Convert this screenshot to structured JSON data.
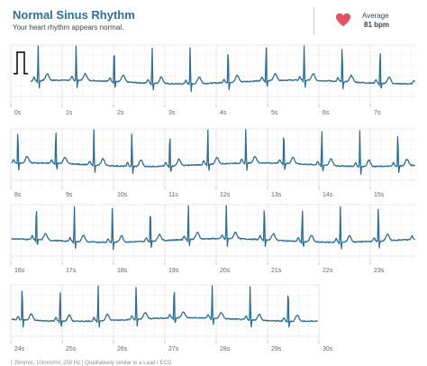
{
  "header": {
    "title": "Normal Sinus Rhythm",
    "subtitle": "Your heart rhythm appears normal.",
    "average_label": "Average",
    "average_value": "81 bpm",
    "heart_icon": "heart-icon"
  },
  "colors": {
    "trace": "#2b6f98",
    "heart": "#e8505f",
    "grid_minor": "#f3e6e6",
    "grid_major": "#e6caca"
  },
  "strips": [
    {
      "time_labels": [
        "0s",
        "1s",
        "2s",
        "3s",
        "4s",
        "5s",
        "6s",
        "7s"
      ]
    },
    {
      "time_labels": [
        "8s",
        "9s",
        "10s",
        "11s",
        "12s",
        "13s",
        "14s",
        "15s"
      ]
    },
    {
      "time_labels": [
        "16s",
        "17s",
        "18s",
        "19s",
        "20s",
        "21s",
        "22s",
        "23s"
      ]
    },
    {
      "time_labels": [
        "24s",
        "25s",
        "26s",
        "27s",
        "28s",
        "29s",
        "30s"
      ]
    }
  ],
  "footnote": "[ 25mm/s, 10mm/mV, 250 Hz ] Qualitatively similar to a Lead I ECG"
}
